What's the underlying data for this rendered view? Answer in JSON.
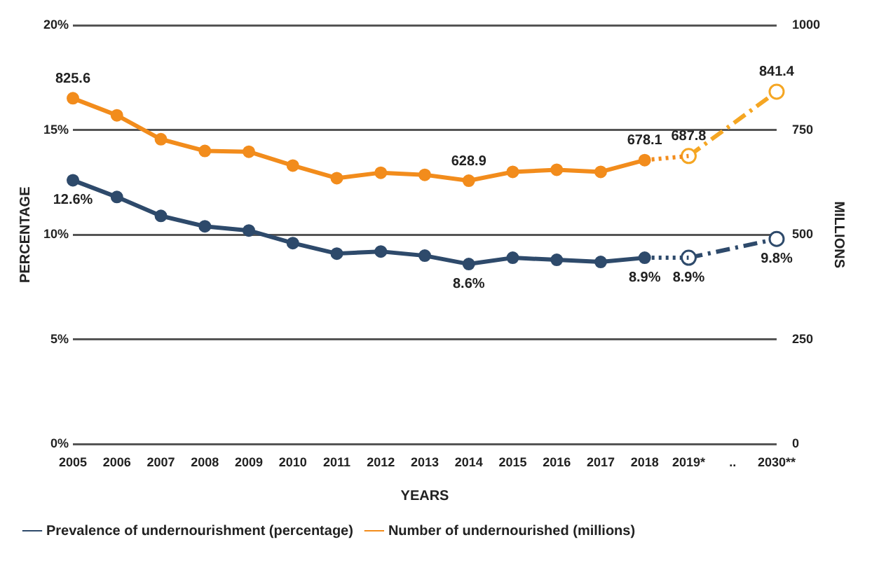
{
  "chart_data": {
    "type": "line",
    "xlabel": "YEARS",
    "ylabel": "PERCENTAGE",
    "y2label": "MILLIONS",
    "categories": [
      "2005",
      "2006",
      "2007",
      "2008",
      "2009",
      "2010",
      "2011",
      "2012",
      "2013",
      "2014",
      "2015",
      "2016",
      "2017",
      "2018",
      "2019*",
      "..",
      "2030**"
    ],
    "series": [
      {
        "name": "Prevalence of undernourishment (percentage)",
        "color": "#2e4a6b",
        "line_style": "solid",
        "marker": "circle",
        "axis": "y",
        "values": [
          12.6,
          11.8,
          10.9,
          10.4,
          10.2,
          9.6,
          9.1,
          9.2,
          9.0,
          8.6,
          8.9,
          8.8,
          8.7,
          8.9,
          null,
          null,
          null
        ],
        "value_labels": [
          "12.6%",
          null,
          null,
          null,
          null,
          null,
          null,
          null,
          null,
          "8.6%",
          null,
          null,
          null,
          "8.9%",
          null,
          null,
          null
        ]
      },
      {
        "color": "#2e4a6b",
        "line_style": "dotted",
        "axis": "y",
        "values": [
          null,
          null,
          null,
          null,
          null,
          null,
          null,
          null,
          null,
          null,
          null,
          null,
          null,
          8.9,
          8.9,
          null,
          null
        ]
      },
      {
        "color": "#2e4a6b",
        "line_style": "dashed",
        "marker": "circle",
        "axis": "y",
        "values": [
          null,
          null,
          null,
          null,
          null,
          null,
          null,
          null,
          null,
          null,
          null,
          null,
          null,
          null,
          8.9,
          null,
          9.8
        ],
        "value_labels": [
          null,
          null,
          null,
          null,
          null,
          null,
          null,
          null,
          null,
          null,
          null,
          null,
          null,
          null,
          "8.9%",
          null,
          "9.8%"
        ]
      },
      {
        "name": "Number of undernourished (millions)",
        "color": "#f28c1c",
        "line_style": "solid",
        "marker": "circle",
        "axis": "y2",
        "values": [
          825.6,
          785,
          728,
          700,
          698,
          665,
          635,
          648,
          643,
          628.9,
          650,
          655,
          650,
          678.1,
          null,
          null,
          null
        ],
        "value_labels": [
          "825.6",
          null,
          null,
          null,
          null,
          null,
          null,
          null,
          null,
          "628.9",
          null,
          null,
          null,
          "678.1",
          null,
          null,
          null
        ]
      },
      {
        "color": "#f28c1c",
        "line_style": "dotted",
        "axis": "y2",
        "values": [
          null,
          null,
          null,
          null,
          null,
          null,
          null,
          null,
          null,
          null,
          null,
          null,
          null,
          678.1,
          687.8,
          null,
          null
        ]
      },
      {
        "color": "#f5a623",
        "line_style": "dashed",
        "marker": "circle",
        "axis": "y2",
        "values": [
          null,
          null,
          null,
          null,
          null,
          null,
          null,
          null,
          null,
          null,
          null,
          null,
          null,
          null,
          687.8,
          null,
          841.4
        ],
        "value_labels": [
          null,
          null,
          null,
          null,
          null,
          null,
          null,
          null,
          null,
          null,
          null,
          null,
          null,
          null,
          "687.8",
          null,
          "841.4"
        ]
      }
    ],
    "ylim": [
      0,
      20
    ],
    "yticks": [
      {
        "value": 0,
        "label": "0%"
      },
      {
        "value": 5,
        "label": "5%"
      },
      {
        "value": 10,
        "label": "10%"
      },
      {
        "value": 15,
        "label": "15%"
      },
      {
        "value": 20,
        "label": "20%"
      }
    ],
    "y2lim": [
      0,
      1000
    ],
    "y2ticks": [
      0,
      250,
      500,
      750,
      1000
    ],
    "grid": "y",
    "legend": "bottom"
  }
}
